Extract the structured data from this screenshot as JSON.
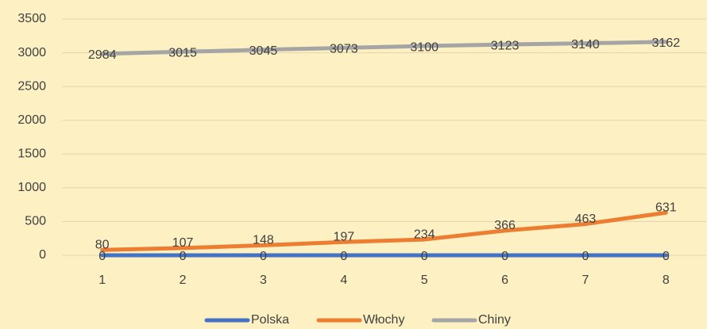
{
  "chart_data": {
    "type": "line",
    "categories": [
      "1",
      "2",
      "3",
      "4",
      "5",
      "6",
      "7",
      "8"
    ],
    "series": [
      {
        "name": "Polska",
        "color": "#4472c4",
        "values": [
          0,
          0,
          0,
          0,
          0,
          0,
          0,
          0
        ]
      },
      {
        "name": "Włochy",
        "color": "#ed7d31",
        "values": [
          80,
          107,
          148,
          197,
          234,
          366,
          463,
          631
        ]
      },
      {
        "name": "Chiny",
        "color": "#a5a5a5",
        "values": [
          2984,
          3015,
          3045,
          3073,
          3100,
          3123,
          3140,
          3162
        ]
      }
    ],
    "ylim": [
      0,
      3500
    ],
    "yticks": [
      0,
      500,
      1000,
      1500,
      2000,
      2500,
      3000,
      3500
    ],
    "grid": true,
    "legend": "bottom",
    "data_labels": true
  }
}
